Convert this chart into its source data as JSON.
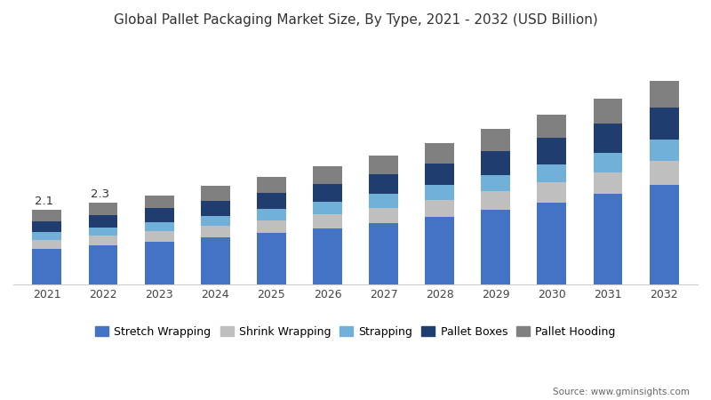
{
  "years": [
    "2021",
    "2022",
    "2023",
    "2024",
    "2025",
    "2026",
    "2027",
    "2028",
    "2029",
    "2030",
    "2031",
    "2032"
  ],
  "totals": [
    2.1,
    2.3,
    2.5,
    2.75,
    3.0,
    3.3,
    3.6,
    3.95,
    4.35,
    4.75,
    5.2,
    5.7
  ],
  "segments": {
    "Stretch Wrapping": [
      1.0,
      1.1,
      1.2,
      1.32,
      1.44,
      1.58,
      1.73,
      1.9,
      2.1,
      2.3,
      2.53,
      2.78
    ],
    "Shrink Wrapping": [
      0.24,
      0.26,
      0.29,
      0.32,
      0.35,
      0.38,
      0.42,
      0.46,
      0.51,
      0.56,
      0.61,
      0.67
    ],
    "Strapping": [
      0.22,
      0.24,
      0.26,
      0.29,
      0.32,
      0.35,
      0.38,
      0.42,
      0.46,
      0.5,
      0.55,
      0.61
    ],
    "Pallet Boxes": [
      0.32,
      0.35,
      0.38,
      0.42,
      0.46,
      0.51,
      0.56,
      0.61,
      0.67,
      0.74,
      0.81,
      0.89
    ],
    "Pallet Hooding": [
      0.32,
      0.35,
      0.37,
      0.4,
      0.43,
      0.48,
      0.51,
      0.56,
      0.61,
      0.65,
      0.7,
      0.75
    ]
  },
  "colors": {
    "Stretch Wrapping": "#4472c4",
    "Shrink Wrapping": "#bfbfbf",
    "Strapping": "#70b0d9",
    "Pallet Boxes": "#1f3d6e",
    "Pallet Hooding": "#808080"
  },
  "annotations": {
    "2021": "2.1",
    "2022": "2.3"
  },
  "title": "Global Pallet Packaging Market Size, By Type, 2021 - 2032 (USD Billion)",
  "source": "Source: www.gminsights.com",
  "background_color": "#ffffff",
  "title_fontsize": 11,
  "legend_fontsize": 9,
  "tick_fontsize": 9,
  "ylim": [
    0,
    6.8
  ]
}
